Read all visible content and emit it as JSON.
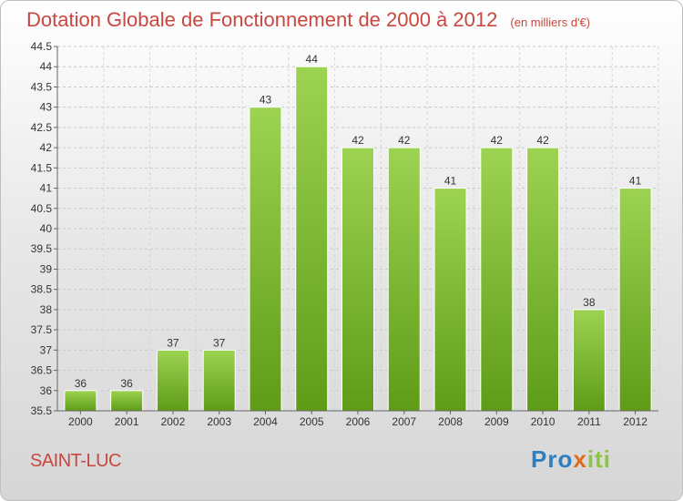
{
  "title": "Dotation Globale de Fonctionnement de 2000 à 2012",
  "subtitle": "(en milliers d'€)",
  "place": "SAINT-LUC",
  "logo": {
    "part1": "Pro",
    "part2": "x",
    "part3": "iti"
  },
  "colors": {
    "title": "#c8473f",
    "bar_top": "#9dd352",
    "bar_bottom": "#5e9c18"
  },
  "chart_data": {
    "type": "bar",
    "categories": [
      "2000",
      "2001",
      "2002",
      "2003",
      "2004",
      "2005",
      "2006",
      "2007",
      "2008",
      "2009",
      "2010",
      "2011",
      "2012"
    ],
    "values": [
      36,
      36,
      37,
      37,
      43,
      44,
      42,
      42,
      41,
      42,
      42,
      38,
      41
    ],
    "value_labels": [
      "36",
      "36",
      "37",
      "37",
      "43",
      "44",
      "42",
      "42",
      "41",
      "42",
      "42",
      "38",
      "41"
    ],
    "ylim": [
      35.5,
      44.5
    ],
    "yticks": [
      "35.5",
      "36",
      "36.5",
      "37",
      "37.5",
      "38",
      "38.5",
      "39",
      "39.5",
      "40",
      "40.5",
      "41",
      "41.5",
      "42",
      "42.5",
      "43",
      "43.5",
      "44",
      "44.5"
    ],
    "grid": true
  }
}
